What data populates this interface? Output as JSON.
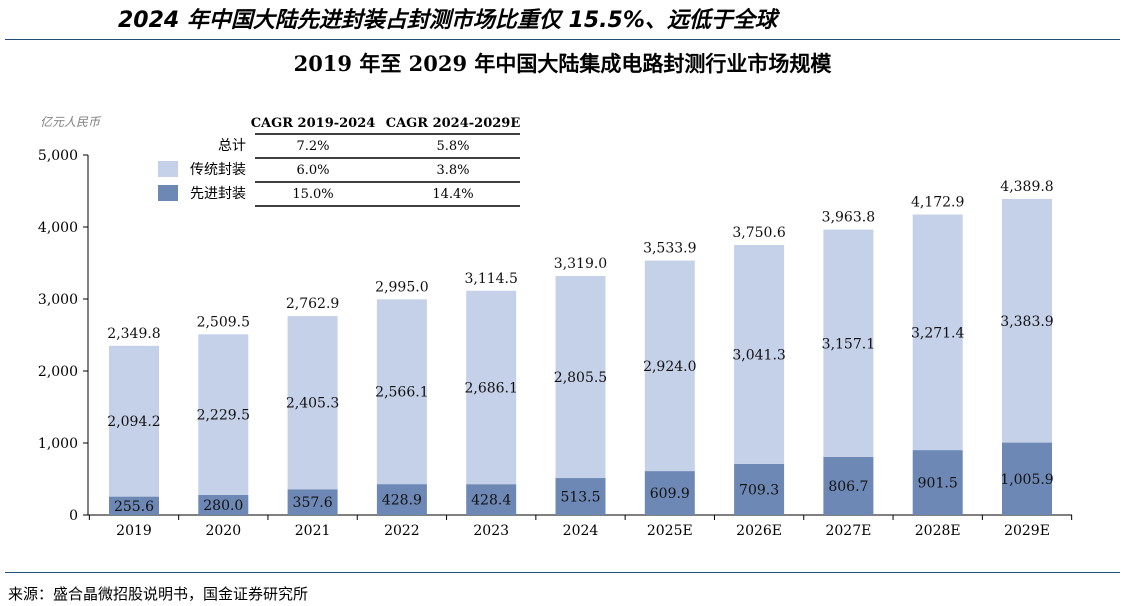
{
  "headline": "2024 年中国大陆先进封装占封测市场比重仅 15.5%、远低于全球",
  "source": "来源：盛合晶微招股说明书，国金证券研究所",
  "chart_data": {
    "type": "bar",
    "stacked": true,
    "title": "2019 年至 2029 年中国大陆集成电路封测行业市场规模",
    "unit_label": "亿元人民币",
    "categories": [
      "2019",
      "2020",
      "2021",
      "2022",
      "2023",
      "2024",
      "2025E",
      "2026E",
      "2027E",
      "2028E",
      "2029E"
    ],
    "series": [
      {
        "name": "先进封装",
        "color": "#6d88b5",
        "values": [
          255.6,
          280.0,
          357.6,
          428.9,
          428.4,
          513.5,
          609.9,
          709.3,
          806.7,
          901.5,
          1005.9
        ],
        "labels": [
          "255.6",
          "280.0",
          "357.6",
          "428.9",
          "428.4",
          "513.5",
          "609.9",
          "709.3",
          "806.7",
          "901.5",
          "1,005.9"
        ]
      },
      {
        "name": "传统封装",
        "color": "#c5d1e8",
        "values": [
          2094.2,
          2229.5,
          2405.3,
          2566.1,
          2686.1,
          2805.5,
          2924.0,
          3041.3,
          3157.1,
          3271.4,
          3383.9
        ],
        "labels": [
          "2,094.2",
          "2,229.5",
          "2,405.3",
          "2,566.1",
          "2,686.1",
          "2,805.5",
          "2,924.0",
          "3,041.3",
          "3,157.1",
          "3,271.4",
          "3,383.9"
        ]
      }
    ],
    "totals": [
      2349.8,
      2509.5,
      2762.9,
      2995.0,
      3114.5,
      3319.0,
      3533.9,
      3750.6,
      3963.8,
      4172.9,
      4389.8
    ],
    "total_labels": [
      "2,349.8",
      "2,509.5",
      "2,762.9",
      "2,995.0",
      "3,114.5",
      "3,319.0",
      "3,533.9",
      "3,750.6",
      "3,963.8",
      "4,172.9",
      "4,389.8"
    ],
    "ylim": [
      0,
      5000
    ],
    "yticks": [
      0,
      1000,
      2000,
      3000,
      4000,
      5000
    ],
    "ytick_labels": [
      "0",
      "1,000",
      "2,000",
      "3,000",
      "4,000",
      "5,000"
    ],
    "grid": false,
    "cagr_table": {
      "headers": [
        "CAGR 2019-2024",
        "CAGR 2024-2029E"
      ],
      "rows": [
        {
          "label": "总计",
          "swatch": "",
          "values": [
            "7.2%",
            "5.8%"
          ]
        },
        {
          "label": "传统封装",
          "swatch": "#c5d1e8",
          "values": [
            "6.0%",
            "3.8%"
          ]
        },
        {
          "label": "先进封装",
          "swatch": "#6d88b5",
          "values": [
            "15.0%",
            "14.4%"
          ]
        }
      ]
    }
  }
}
